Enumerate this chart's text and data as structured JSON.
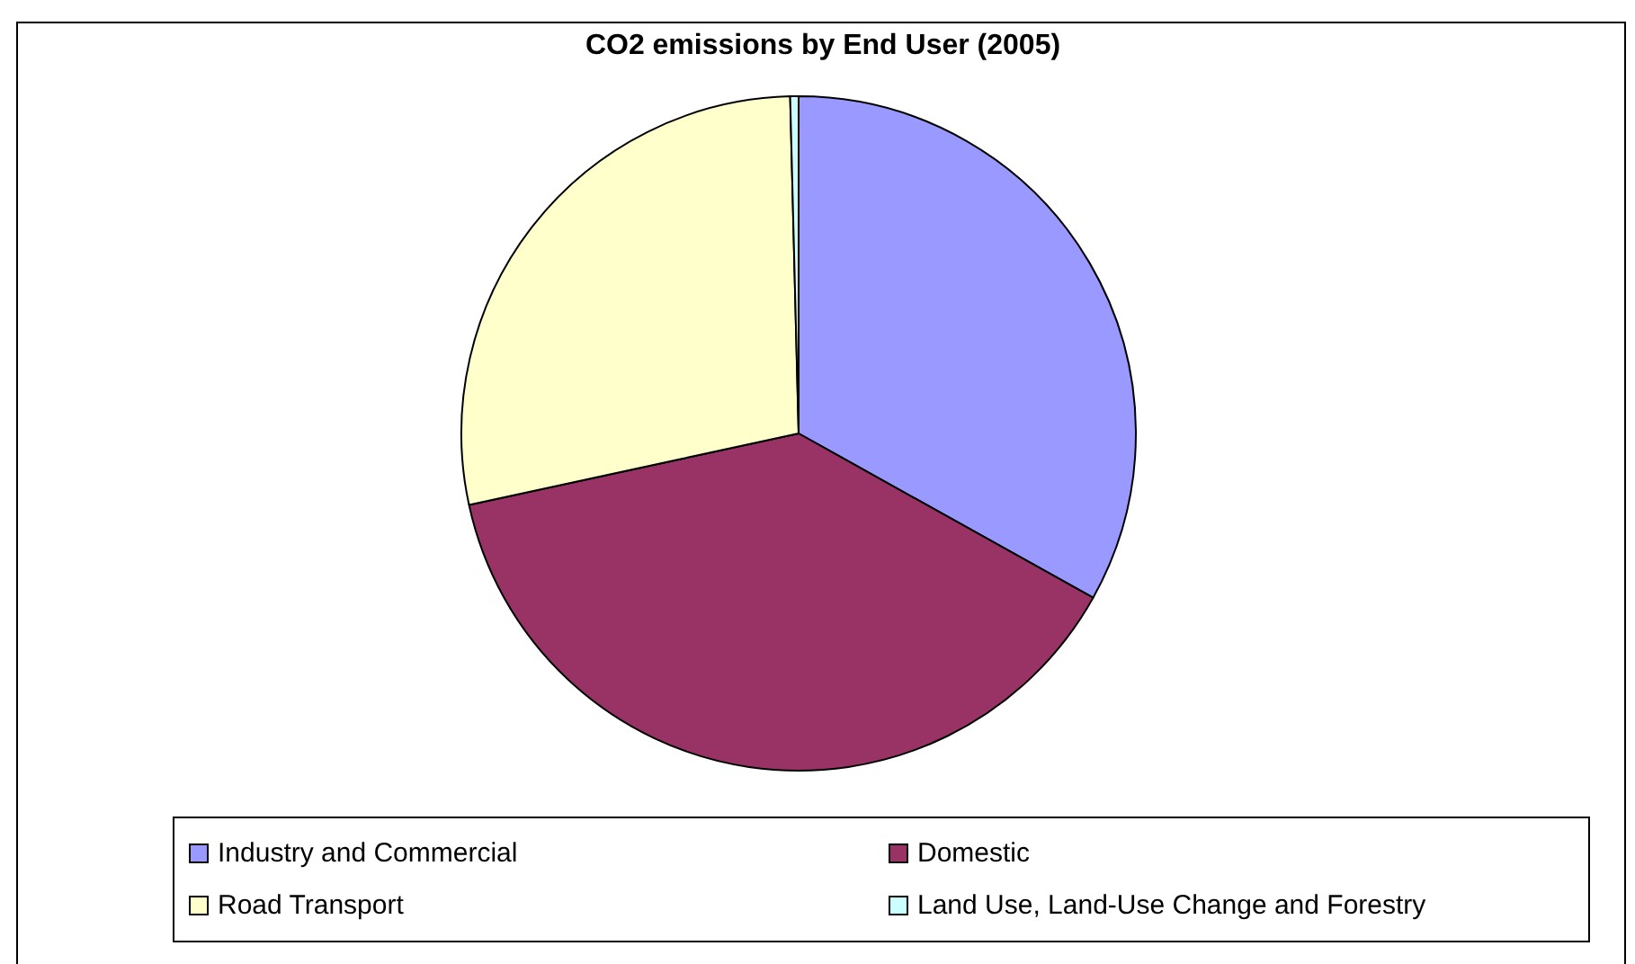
{
  "chart_data": {
    "type": "pie",
    "title": "CO2 emissions by End User (2005)",
    "categories": [
      "Industry and Commercial",
      "Domestic",
      "Road Transport",
      "Land Use, Land-Use Change and Forestry"
    ],
    "values": [
      33.1,
      38.5,
      28.0,
      0.4
    ],
    "colors": [
      "#9999ff",
      "#993366",
      "#ffffcc",
      "#ccffff"
    ],
    "legend": "bottom"
  }
}
